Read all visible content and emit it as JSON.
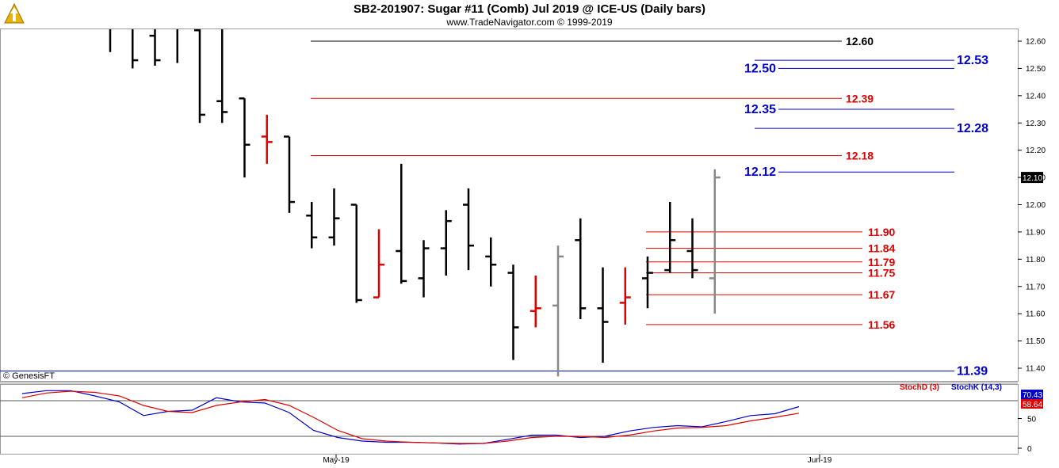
{
  "header": {
    "title": "SB2-201907:  Sugar #11 (Comb) Jul 2019 @ ICE-US  (Daily bars)",
    "subtitle": "www.TradeNavigator.com © 1999-2019",
    "logo_icon": "trade-navigator-logo-icon"
  },
  "footer": {
    "copyright": "© GenesisFT"
  },
  "colors": {
    "bar": "#000000",
    "red": "#e00000",
    "blue": "#0000cc",
    "gray": "#888888",
    "green": "#00cc00"
  },
  "chart_data": [
    {
      "type": "ohlc",
      "ylim": [
        11.36,
        12.66
      ],
      "y_ticks": [
        "12.60",
        "12.50",
        "12.40",
        "12.30",
        "12.20",
        "12.10",
        "12.00",
        "11.90",
        "11.80",
        "11.70",
        "11.60",
        "11.50",
        "11.40"
      ],
      "x_ticks": [
        "May-19",
        "Jun-19"
      ],
      "last_price": "12.10",
      "bars": [
        {
          "o": 12.7,
          "h": 12.72,
          "l": 12.56,
          "c": 12.68,
          "color": "#000000"
        },
        {
          "o": 12.68,
          "h": 12.7,
          "l": 12.5,
          "c": 12.53,
          "color": "#000000"
        },
        {
          "o": 12.62,
          "h": 12.66,
          "l": 12.51,
          "c": 12.53,
          "color": "#000000"
        },
        {
          "o": 12.7,
          "h": 12.72,
          "l": 12.52,
          "c": 12.68,
          "color": "#000000"
        },
        {
          "o": 12.64,
          "h": 12.66,
          "l": 12.3,
          "c": 12.33,
          "color": "#000000"
        },
        {
          "o": 12.38,
          "h": 12.66,
          "l": 12.3,
          "c": 12.34,
          "color": "#000000"
        },
        {
          "o": 12.39,
          "h": 12.39,
          "l": 12.1,
          "c": 12.22,
          "color": "#000000"
        },
        {
          "o": 12.25,
          "h": 12.33,
          "l": 12.15,
          "c": 12.23,
          "color": "#e00000"
        },
        {
          "o": 12.25,
          "h": 12.25,
          "l": 11.97,
          "c": 12.01,
          "color": "#000000"
        },
        {
          "o": 11.96,
          "h": 12.01,
          "l": 11.84,
          "c": 11.88,
          "color": "#000000"
        },
        {
          "o": 11.88,
          "h": 12.06,
          "l": 11.85,
          "c": 11.95,
          "color": "#000000"
        },
        {
          "o": 12.0,
          "h": 12.0,
          "l": 11.64,
          "c": 11.65,
          "color": "#000000"
        },
        {
          "o": 11.66,
          "h": 11.91,
          "l": 11.66,
          "c": 11.78,
          "color": "#e00000"
        },
        {
          "o": 11.83,
          "h": 12.15,
          "l": 11.71,
          "c": 11.72,
          "color": "#000000"
        },
        {
          "o": 11.73,
          "h": 11.87,
          "l": 11.66,
          "c": 11.84,
          "color": "#000000"
        },
        {
          "o": 11.84,
          "h": 11.98,
          "l": 11.74,
          "c": 11.94,
          "color": "#000000"
        },
        {
          "o": 12.0,
          "h": 12.06,
          "l": 11.76,
          "c": 11.85,
          "color": "#000000"
        },
        {
          "o": 11.81,
          "h": 11.88,
          "l": 11.7,
          "c": 11.78,
          "color": "#000000"
        },
        {
          "o": 11.75,
          "h": 11.78,
          "l": 11.43,
          "c": 11.55,
          "color": "#000000"
        },
        {
          "o": 11.61,
          "h": 11.74,
          "l": 11.55,
          "c": 11.62,
          "color": "#e00000"
        },
        {
          "o": 11.63,
          "h": 11.85,
          "l": 11.37,
          "c": 11.81,
          "color": "#888888"
        },
        {
          "o": 11.87,
          "h": 11.95,
          "l": 11.58,
          "c": 11.62,
          "color": "#000000"
        },
        {
          "o": 11.62,
          "h": 11.77,
          "l": 11.42,
          "c": 11.57,
          "color": "#000000"
        },
        {
          "o": 11.64,
          "h": 11.77,
          "l": 11.56,
          "c": 11.66,
          "color": "#e00000"
        },
        {
          "o": 11.73,
          "h": 11.81,
          "l": 11.62,
          "c": 11.75,
          "color": "#000000"
        },
        {
          "o": 11.76,
          "h": 12.01,
          "l": 11.75,
          "c": 11.87,
          "color": "#000000"
        },
        {
          "o": 11.83,
          "h": 11.95,
          "l": 11.73,
          "c": 11.76,
          "color": "#000000"
        },
        {
          "o": 11.73,
          "h": 12.13,
          "l": 11.6,
          "c": 12.1,
          "color": "#888888"
        }
      ],
      "levels": [
        {
          "value": 12.6,
          "label": "12.60",
          "color": "#000000",
          "line": "from_bar5",
          "label_pos": "mid"
        },
        {
          "value": 12.53,
          "label": "12.53",
          "color": "#0000cc",
          "line": "right",
          "label_pos": "far"
        },
        {
          "value": 12.5,
          "label": "12.50",
          "color": "#0000cc",
          "line": "right",
          "label_pos": "left"
        },
        {
          "value": 12.39,
          "label": "12.39",
          "color": "#e00000",
          "line": "from_bar5",
          "label_pos": "mid"
        },
        {
          "value": 12.35,
          "label": "12.35",
          "color": "#0000cc",
          "line": "right",
          "label_pos": "left"
        },
        {
          "value": 12.28,
          "label": "12.28",
          "color": "#0000cc",
          "line": "right",
          "label_pos": "far"
        },
        {
          "value": 12.18,
          "label": "12.18",
          "color": "#e00000",
          "line": "from_bar5",
          "label_pos": "mid"
        },
        {
          "value": 12.12,
          "label": "12.12",
          "color": "#0000cc",
          "line": "right",
          "label_pos": "left"
        },
        {
          "value": 11.9,
          "label": "11.90",
          "color": "#e00000",
          "line": "short",
          "label_pos": "mid2"
        },
        {
          "value": 11.84,
          "label": "11.84",
          "color": "#e00000",
          "line": "short",
          "label_pos": "mid2"
        },
        {
          "value": 11.79,
          "label": "11.79",
          "color": "#e00000",
          "line": "short",
          "label_pos": "mid2"
        },
        {
          "value": 11.75,
          "label": "11.75",
          "color": "#e00000",
          "line": "short",
          "label_pos": "mid2"
        },
        {
          "value": 11.67,
          "label": "11.67",
          "color": "#e00000",
          "line": "short",
          "label_pos": "mid2"
        },
        {
          "value": 11.56,
          "label": "11.56",
          "color": "#e00000",
          "line": "short",
          "label_pos": "mid2"
        },
        {
          "value": 11.39,
          "label": "11.39",
          "color": "#0000cc",
          "line": "full",
          "label_pos": "far"
        }
      ]
    },
    {
      "type": "line",
      "ylim": [
        0,
        100
      ],
      "y_ticks": [
        "50",
        "0"
      ],
      "legend": [
        "StochD (3)",
        "StochK (14,3)"
      ],
      "last_values": {
        "stoch_k": "70.43",
        "stoch_d": "58.64"
      },
      "series": [
        {
          "name": "StochK (14,3)",
          "color": "#0000cc",
          "values": [
            92,
            97,
            97,
            88,
            78,
            55,
            62,
            64,
            85,
            78,
            76,
            60,
            30,
            18,
            12,
            10,
            10,
            9,
            7,
            8,
            15,
            22,
            22,
            18,
            20,
            29,
            35,
            38,
            36,
            45,
            55,
            58,
            70
          ]
        },
        {
          "name": "StochD (3)",
          "color": "#e00000",
          "values": [
            85,
            93,
            96,
            94,
            88,
            72,
            62,
            60,
            72,
            78,
            82,
            72,
            52,
            30,
            16,
            12,
            10,
            9,
            8,
            8,
            12,
            18,
            20,
            20,
            18,
            22,
            29,
            34,
            35,
            38,
            46,
            52,
            59
          ]
        }
      ]
    }
  ]
}
